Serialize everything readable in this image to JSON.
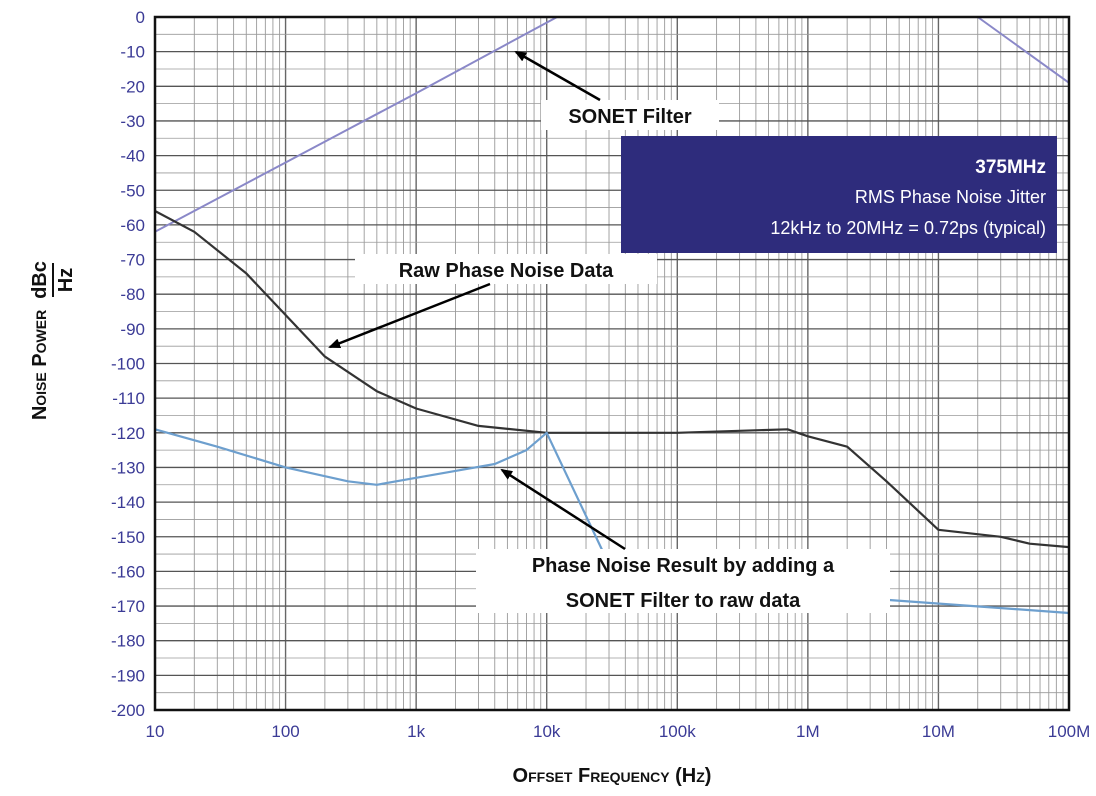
{
  "chart_data": {
    "type": "line",
    "xscale": "log",
    "xlim": [
      10,
      100000000
    ],
    "ylim": [
      -200,
      0
    ],
    "grid": true,
    "x_tick_labels": [
      "10",
      "100",
      "1k",
      "10k",
      "100k",
      "1M",
      "10M",
      "100M"
    ],
    "y_tick_labels": [
      "0",
      "-10",
      "-20",
      "-30",
      "-40",
      "-50",
      "-60",
      "-70",
      "-80",
      "-90",
      "-100",
      "-110",
      "-120",
      "-130",
      "-140",
      "-150",
      "-160",
      "-170",
      "-180",
      "-190",
      "-200"
    ],
    "xlabel": {
      "main": "Offset Frequency",
      "unit": "Hz"
    },
    "ylabel": {
      "main": "Noise Power",
      "unit_num": "dBc",
      "unit_den": "Hz"
    },
    "series": [
      {
        "id": "sonet_filter",
        "color": "#8a88c8",
        "x": [
          10,
          100,
          1000,
          12000,
          20000000,
          100000000
        ],
        "y": [
          -62,
          -42,
          -22,
          0,
          0,
          -19
        ]
      },
      {
        "id": "raw",
        "color": "#333333",
        "x": [
          10,
          20,
          50,
          100,
          200,
          500,
          1000,
          3000,
          10000,
          100000,
          700000,
          1000000,
          2000000,
          4000000,
          10000000,
          30000000,
          50000000,
          100000000
        ],
        "y": [
          -56,
          -62,
          -74,
          -86,
          -98,
          -108,
          -113,
          -118,
          -120,
          -120,
          -119,
          -121,
          -124,
          -134,
          -148,
          -150,
          -152,
          -153
        ]
      },
      {
        "id": "filtered",
        "color": "#6d9fce",
        "x": [
          10,
          30,
          100,
          300,
          500,
          1000,
          2000,
          4000,
          7000,
          10000,
          30000,
          50000,
          100000000
        ],
        "y": [
          -119,
          -124,
          -130,
          -134,
          -135,
          -133,
          -131,
          -129,
          -125,
          -120,
          -158,
          -163,
          -172
        ]
      }
    ],
    "annotations": [
      {
        "text": "SONET Filter",
        "points_to": [
          5000,
          -9
        ]
      },
      {
        "text": "Raw Phase Noise Data",
        "points_to": [
          200,
          -98
        ]
      },
      {
        "text": "Phase Noise Result by adding a",
        "text2": "SONET Filter to raw data",
        "points_to": [
          4000,
          -130
        ]
      }
    ],
    "info_box": {
      "title": "375MHz",
      "line1": "RMS Phase Noise Jitter",
      "line2": "12kHz to 20MHz = 0.72ps (typical)",
      "color": "#2e2c7c"
    }
  }
}
